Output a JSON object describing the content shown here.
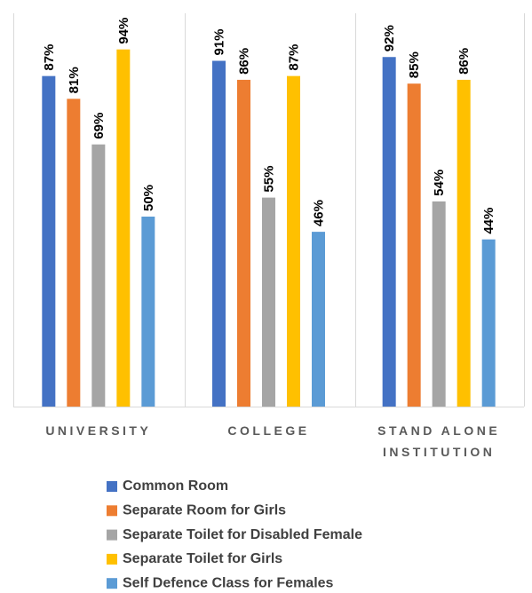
{
  "chart_data": {
    "type": "bar",
    "categories": [
      "UNIVERSITY",
      "COLLEGE",
      "STAND ALONE INSTITUTION"
    ],
    "series": [
      {
        "name": "Common Room",
        "color": "#4472c4",
        "values": [
          87,
          91,
          92
        ],
        "value_labels": [
          "87%",
          "91%",
          "92%"
        ]
      },
      {
        "name": "Separate Room for Girls",
        "color": "#ed7d31",
        "values": [
          81,
          86,
          85
        ],
        "value_labels": [
          "81%",
          "86%",
          "85%"
        ]
      },
      {
        "name": "Separate Toilet for Disabled Female",
        "color": "#a5a5a5",
        "values": [
          69,
          55,
          54
        ],
        "value_labels": [
          "69%",
          "55%",
          "54%"
        ]
      },
      {
        "name": "Separate Toilet for Girls",
        "color": "#ffc000",
        "values": [
          94,
          87,
          86
        ],
        "value_labels": [
          "94%",
          "87%",
          "86%"
        ]
      },
      {
        "name": "Self Defence Class for Females",
        "color": "#5b9bd5",
        "values": [
          50,
          46,
          44
        ],
        "value_labels": [
          "50%",
          "46%",
          "44%"
        ]
      }
    ],
    "ylim": [
      0,
      100
    ]
  }
}
